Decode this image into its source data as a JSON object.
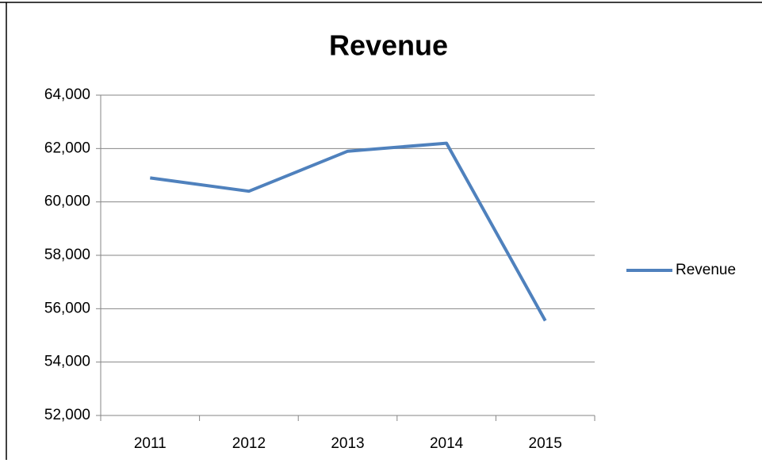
{
  "chart_data": {
    "type": "line",
    "title": "Revenue",
    "categories": [
      "2011",
      "2012",
      "2013",
      "2014",
      "2015"
    ],
    "series": [
      {
        "name": "Revenue",
        "color": "#4f81bd",
        "values": [
          60900,
          60400,
          61900,
          62200,
          55550
        ]
      }
    ],
    "ylim": [
      52000,
      64000
    ],
    "yticks": [
      {
        "value": 52000,
        "label": "52,000"
      },
      {
        "value": 54000,
        "label": "54,000"
      },
      {
        "value": 56000,
        "label": "56,000"
      },
      {
        "value": 58000,
        "label": "58,000"
      },
      {
        "value": 60000,
        "label": "60,000"
      },
      {
        "value": 62000,
        "label": "62,000"
      },
      {
        "value": 64000,
        "label": "64,000"
      }
    ],
    "grid": true,
    "legend": "right"
  }
}
